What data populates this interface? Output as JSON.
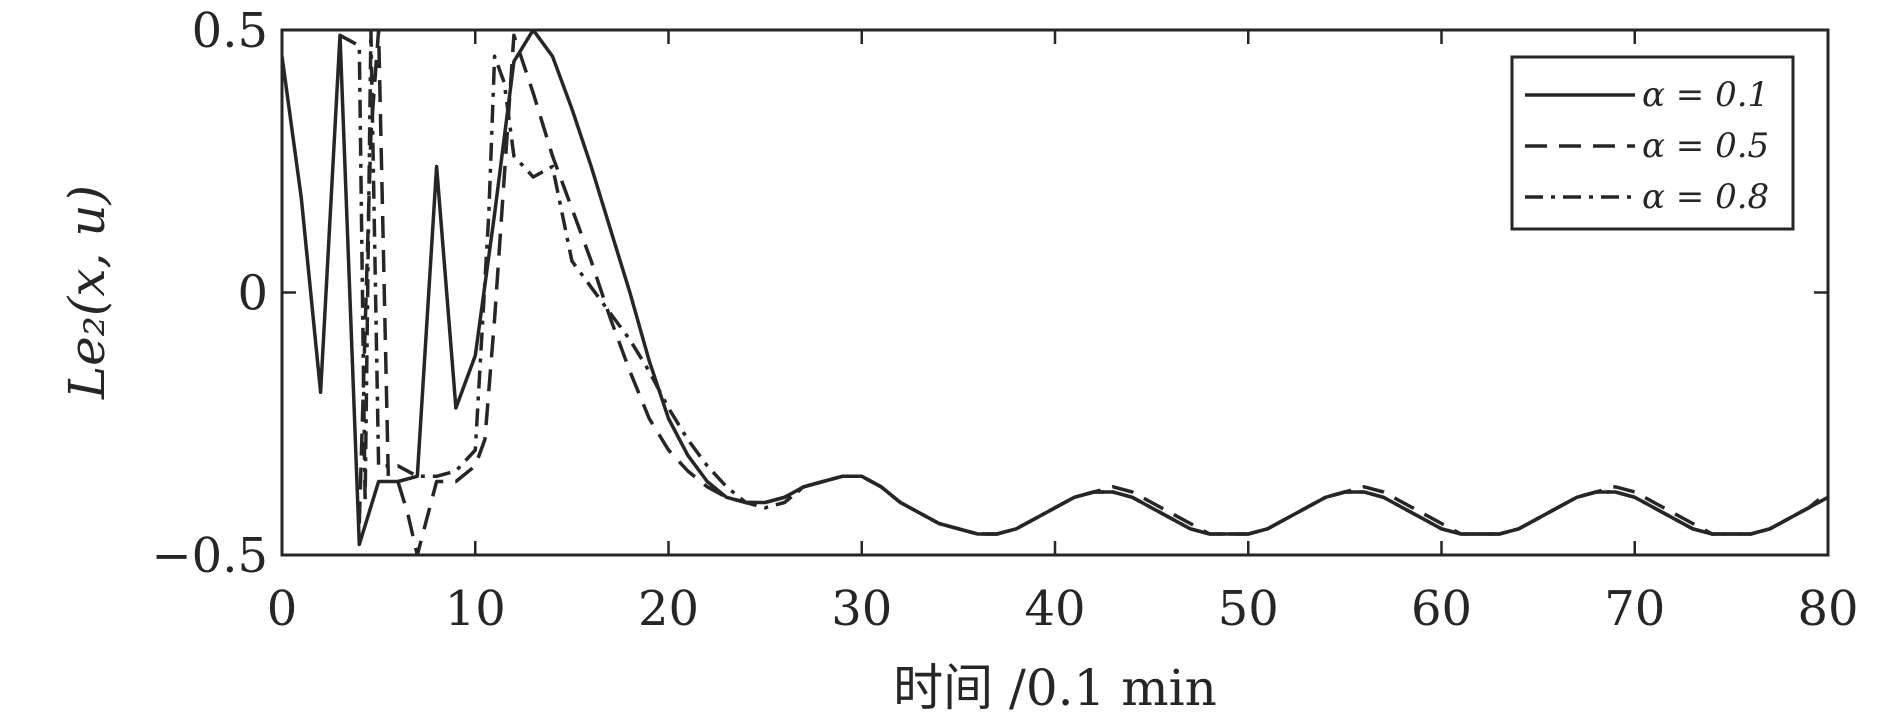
{
  "chart_data": {
    "type": "line",
    "title": "",
    "xlabel": "时间 /0.1 min",
    "ylabel": "Le₂(x, u)",
    "xlim": [
      0,
      80
    ],
    "ylim": [
      -0.5,
      0.5
    ],
    "xticks": [
      0,
      10,
      20,
      30,
      40,
      50,
      60,
      70,
      80
    ],
    "xtick_labels": [
      "0",
      "10",
      "20",
      "30",
      "40",
      "50",
      "60",
      "70",
      "80"
    ],
    "yticks": [
      -0.5,
      0,
      0.5
    ],
    "ytick_labels": [
      "−0.5",
      "0",
      "0.5"
    ],
    "grid": false,
    "legend_position": "top-right",
    "line_color": "#262626",
    "series": [
      {
        "name": "α = 0.1",
        "style": "solid",
        "x": [
          0,
          1,
          2,
          3,
          4,
          5,
          6,
          7,
          8,
          9,
          10,
          11,
          12,
          13,
          14,
          15,
          16,
          17,
          18,
          19,
          20,
          21,
          22,
          23,
          24,
          25,
          26,
          27,
          28,
          29,
          30,
          31,
          32,
          33,
          34,
          35,
          36,
          37,
          38,
          39,
          40,
          41,
          42,
          43,
          44,
          45,
          46,
          47,
          48,
          49,
          50,
          51,
          52,
          53,
          54,
          55,
          56,
          57,
          58,
          59,
          60,
          61,
          62,
          63,
          64,
          65,
          66,
          67,
          68,
          69,
          70,
          71,
          72,
          73,
          74,
          75,
          76,
          77,
          78,
          79,
          80
        ],
        "y": [
          0.45,
          0.18,
          -0.19,
          0.49,
          -0.48,
          -0.36,
          -0.36,
          -0.35,
          0.24,
          -0.22,
          -0.12,
          0.15,
          0.44,
          0.5,
          0.45,
          0.35,
          0.24,
          0.12,
          0.0,
          -0.13,
          -0.24,
          -0.31,
          -0.36,
          -0.39,
          -0.4,
          -0.4,
          -0.39,
          -0.37,
          -0.36,
          -0.35,
          -0.35,
          -0.37,
          -0.4,
          -0.42,
          -0.44,
          -0.45,
          -0.46,
          -0.46,
          -0.45,
          -0.43,
          -0.41,
          -0.39,
          -0.38,
          -0.38,
          -0.39,
          -0.41,
          -0.43,
          -0.45,
          -0.46,
          -0.46,
          -0.46,
          -0.45,
          -0.43,
          -0.41,
          -0.39,
          -0.38,
          -0.38,
          -0.39,
          -0.41,
          -0.43,
          -0.45,
          -0.46,
          -0.46,
          -0.46,
          -0.45,
          -0.43,
          -0.41,
          -0.39,
          -0.38,
          -0.38,
          -0.39,
          -0.41,
          -0.43,
          -0.45,
          -0.46,
          -0.46,
          -0.46,
          -0.45,
          -0.43,
          -0.41,
          -0.39
        ]
      },
      {
        "name": "α = 0.5",
        "style": "dashed",
        "x": [
          4,
          4.6,
          5,
          5.5,
          6,
          6.5,
          7,
          8,
          9,
          10,
          10.5,
          11,
          12,
          13,
          14,
          15,
          16,
          17,
          18,
          19,
          20,
          21,
          22,
          23,
          24,
          25,
          26,
          27,
          28,
          29,
          30,
          31,
          32,
          33,
          34,
          35,
          36,
          37,
          38,
          39,
          40,
          41,
          42,
          43,
          44,
          45,
          46,
          47,
          48,
          49,
          50,
          51,
          52,
          53,
          54,
          55,
          56,
          57,
          58,
          59,
          60,
          61,
          62,
          63,
          64,
          65,
          66,
          67,
          68,
          69,
          70,
          71,
          72,
          73,
          74,
          75,
          76,
          77,
          78,
          79,
          80
        ],
        "y": [
          -0.44,
          0.3,
          0.5,
          -0.35,
          -0.36,
          -0.42,
          -0.5,
          -0.36,
          -0.36,
          -0.33,
          -0.28,
          -0.05,
          0.49,
          0.38,
          0.26,
          0.16,
          0.06,
          -0.05,
          -0.15,
          -0.24,
          -0.3,
          -0.34,
          -0.37,
          -0.39,
          -0.4,
          -0.4,
          -0.39,
          -0.37,
          -0.36,
          -0.35,
          -0.35,
          -0.37,
          -0.4,
          -0.42,
          -0.44,
          -0.45,
          -0.46,
          -0.46,
          -0.45,
          -0.43,
          -0.41,
          -0.39,
          -0.38,
          -0.37,
          -0.38,
          -0.4,
          -0.42,
          -0.44,
          -0.46,
          -0.46,
          -0.46,
          -0.45,
          -0.43,
          -0.41,
          -0.39,
          -0.38,
          -0.37,
          -0.38,
          -0.4,
          -0.42,
          -0.44,
          -0.46,
          -0.46,
          -0.46,
          -0.45,
          -0.43,
          -0.41,
          -0.39,
          -0.38,
          -0.37,
          -0.38,
          -0.4,
          -0.42,
          -0.44,
          -0.46,
          -0.46,
          -0.46,
          -0.45,
          -0.43,
          -0.41,
          -0.38
        ]
      },
      {
        "name": "α = 0.8",
        "style": "dashdot",
        "x": [
          3,
          4,
          4.3,
          4.6,
          5,
          6,
          7,
          8,
          9,
          10,
          10.7,
          11,
          11.5,
          12,
          12.5,
          13,
          14,
          15,
          16,
          17,
          18,
          19,
          20,
          21,
          22,
          23,
          24,
          25,
          26,
          27,
          28,
          29,
          30,
          31,
          32,
          33,
          34,
          35,
          36,
          37,
          38,
          39,
          40,
          41,
          42,
          43,
          44,
          45,
          46,
          47,
          48,
          49,
          50,
          51,
          52,
          53,
          54,
          55,
          56,
          57,
          58,
          59,
          60,
          61,
          62,
          63,
          64,
          65,
          66,
          67,
          68,
          69,
          70,
          71,
          72,
          73,
          74,
          75,
          76,
          77,
          78,
          79,
          80
        ],
        "y": [
          0.49,
          0.47,
          -0.4,
          0.5,
          -0.33,
          -0.33,
          -0.35,
          -0.35,
          -0.34,
          -0.3,
          0.15,
          0.45,
          0.4,
          0.26,
          0.24,
          0.22,
          0.24,
          0.06,
          0.01,
          -0.04,
          -0.09,
          -0.15,
          -0.22,
          -0.28,
          -0.33,
          -0.37,
          -0.4,
          -0.41,
          -0.4,
          -0.37,
          -0.36,
          -0.35,
          -0.35,
          -0.37,
          -0.4,
          -0.42,
          -0.44,
          -0.45,
          -0.46,
          -0.46,
          -0.45,
          -0.43,
          -0.41,
          -0.39,
          -0.38,
          -0.38,
          -0.39,
          -0.41,
          -0.43,
          -0.45,
          -0.46,
          -0.46,
          -0.46,
          -0.45,
          -0.43,
          -0.41,
          -0.39,
          -0.38,
          -0.38,
          -0.39,
          -0.41,
          -0.43,
          -0.45,
          -0.46,
          -0.46,
          -0.46,
          -0.45,
          -0.43,
          -0.41,
          -0.39,
          -0.38,
          -0.38,
          -0.39,
          -0.41,
          -0.43,
          -0.45,
          -0.46,
          -0.46,
          -0.46,
          -0.45,
          -0.43,
          -0.41,
          -0.39
        ]
      }
    ]
  }
}
